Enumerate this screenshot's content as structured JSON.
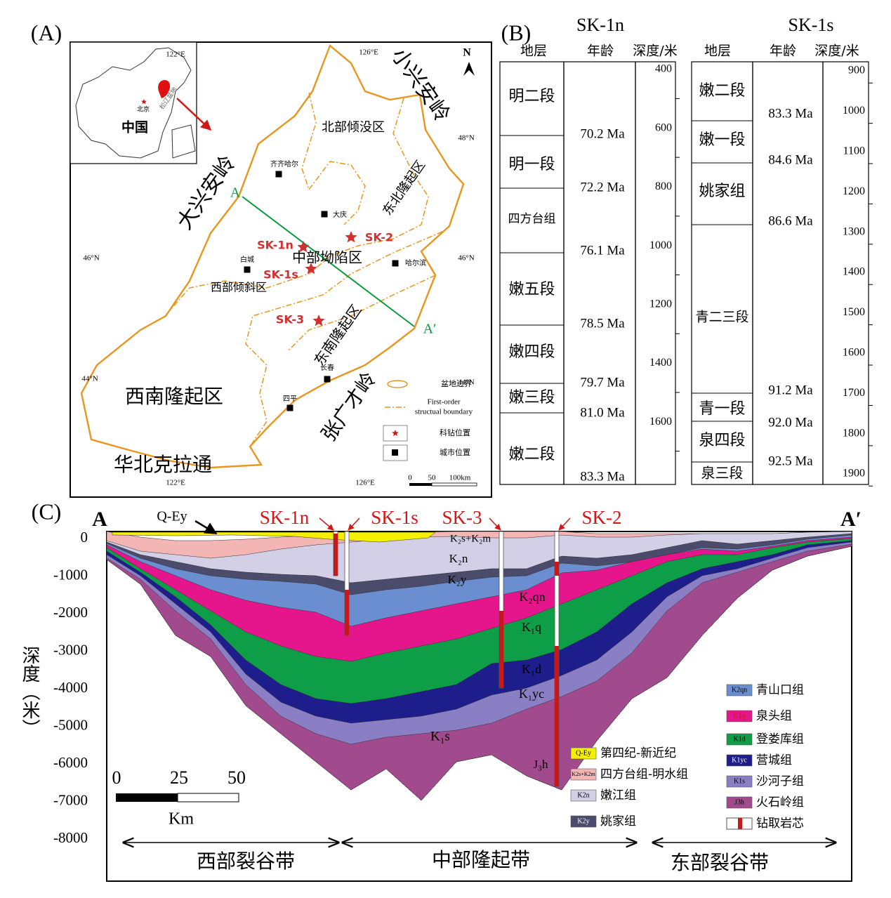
{
  "panel_a": {
    "label": "(A)",
    "lon_ticks": [
      "122°E",
      "126°E"
    ],
    "lat_ticks": [
      "48°N",
      "46°N",
      "44°N"
    ],
    "north": "N",
    "inset": {
      "country": "中国",
      "capital": "北京",
      "basin": "松辽盆地"
    },
    "mountains": [
      "大兴安岭",
      "小兴安岭",
      "张广才岭",
      "华北克拉通"
    ],
    "regions": [
      "北部倾没区",
      "东北隆起区",
      "中部坳陷区",
      "西部倾斜区",
      "东南隆起区",
      "西南隆起区"
    ],
    "cities": [
      "齐齐哈尔",
      "大庆",
      "白城",
      "哈尔滨",
      "长春",
      "四平"
    ],
    "wells": [
      "SK-1n",
      "SK-1s",
      "SK-2",
      "SK-3"
    ],
    "section_ends": [
      "A",
      "A′"
    ],
    "legend": {
      "basin_boundary": "盆地边界",
      "structural_boundary": [
        "First-order",
        "structual boundary"
      ],
      "well_location": "科钻位置",
      "city_location": "城市位置"
    },
    "scale": [
      0,
      50,
      "100km"
    ]
  },
  "panel_b": {
    "label": "(B)",
    "columns": [
      {
        "well": "SK-1n",
        "headers": [
          "地层",
          "年龄",
          "深度/米"
        ],
        "strata": [
          "明二段",
          "明一段",
          "四方台组",
          "嫩五段",
          "嫩四段",
          "嫩三段",
          "嫩二段"
        ],
        "ages": [
          "70.2 Ma",
          "72.2 Ma",
          "76.1 Ma",
          "78.5 Ma",
          "79.7 Ma",
          "81.0 Ma",
          "83.3 Ma"
        ],
        "depths": [
          400,
          600,
          800,
          1000,
          1200,
          1400,
          1600
        ]
      },
      {
        "well": "SK-1s",
        "headers": [
          "地层",
          "年龄",
          "深度/米"
        ],
        "strata": [
          "嫩二段",
          "嫩一段",
          "姚家组",
          "青二三段",
          "青一段",
          "泉四段",
          "泉三段"
        ],
        "ages": [
          "83.3 Ma",
          "84.6 Ma",
          "86.6 Ma",
          "91.2 Ma",
          "92.0 Ma",
          "92.5 Ma"
        ],
        "depths": [
          900,
          1000,
          1100,
          1200,
          1300,
          1400,
          1500,
          1600,
          1700,
          1800,
          1900
        ]
      }
    ]
  },
  "panel_c": {
    "label": "(C)",
    "section_ends": [
      "A",
      "A′"
    ],
    "y_axis_title": "深度（米）",
    "yticks": [
      0,
      -1000,
      -2000,
      -3000,
      -4000,
      -5000,
      -6000,
      -7000,
      -8000
    ],
    "wells": [
      "SK-1n",
      "SK-1s",
      "SK-3",
      "SK-2"
    ],
    "surface_unit": "Q-Ey",
    "units": [
      "K₂s+K₂m",
      "K₂n",
      "K₂y",
      "K₂qn",
      "K₁q",
      "K₁d",
      "K₁yc",
      "K₁s",
      "J₃h"
    ],
    "scale": [
      0,
      25,
      50,
      "Km"
    ],
    "zones": [
      "西部裂谷带",
      "中部隆起带",
      "东部裂谷带"
    ],
    "legend": [
      {
        "code": "Q-Ey",
        "label": "第四纪-新近纪",
        "color": "#f5ef00"
      },
      {
        "code": "K2s+K2m",
        "label": "四方台组-明水组",
        "color": "#f4b6b4"
      },
      {
        "code": "K2n",
        "label": "嫩江组",
        "color": "#d2cfe6"
      },
      {
        "code": "K2y",
        "label": "姚家组",
        "color": "#4b4b6b"
      },
      {
        "code": "K2qn",
        "label": "青山口组",
        "color": "#6a8ed0"
      },
      {
        "code": "K1q",
        "label": "泉头组",
        "color": "#e5168c"
      },
      {
        "code": "K1d",
        "label": "登娄库组",
        "color": "#0e9e48"
      },
      {
        "code": "K1yc",
        "label": "营城组",
        "color": "#1d1d8c"
      },
      {
        "code": "K1s",
        "label": "沙河子组",
        "color": "#8a7fc4"
      },
      {
        "code": "J3h",
        "label": "火石岭组",
        "color": "#a24a8e"
      },
      {
        "label": "钻取岩芯"
      }
    ]
  }
}
